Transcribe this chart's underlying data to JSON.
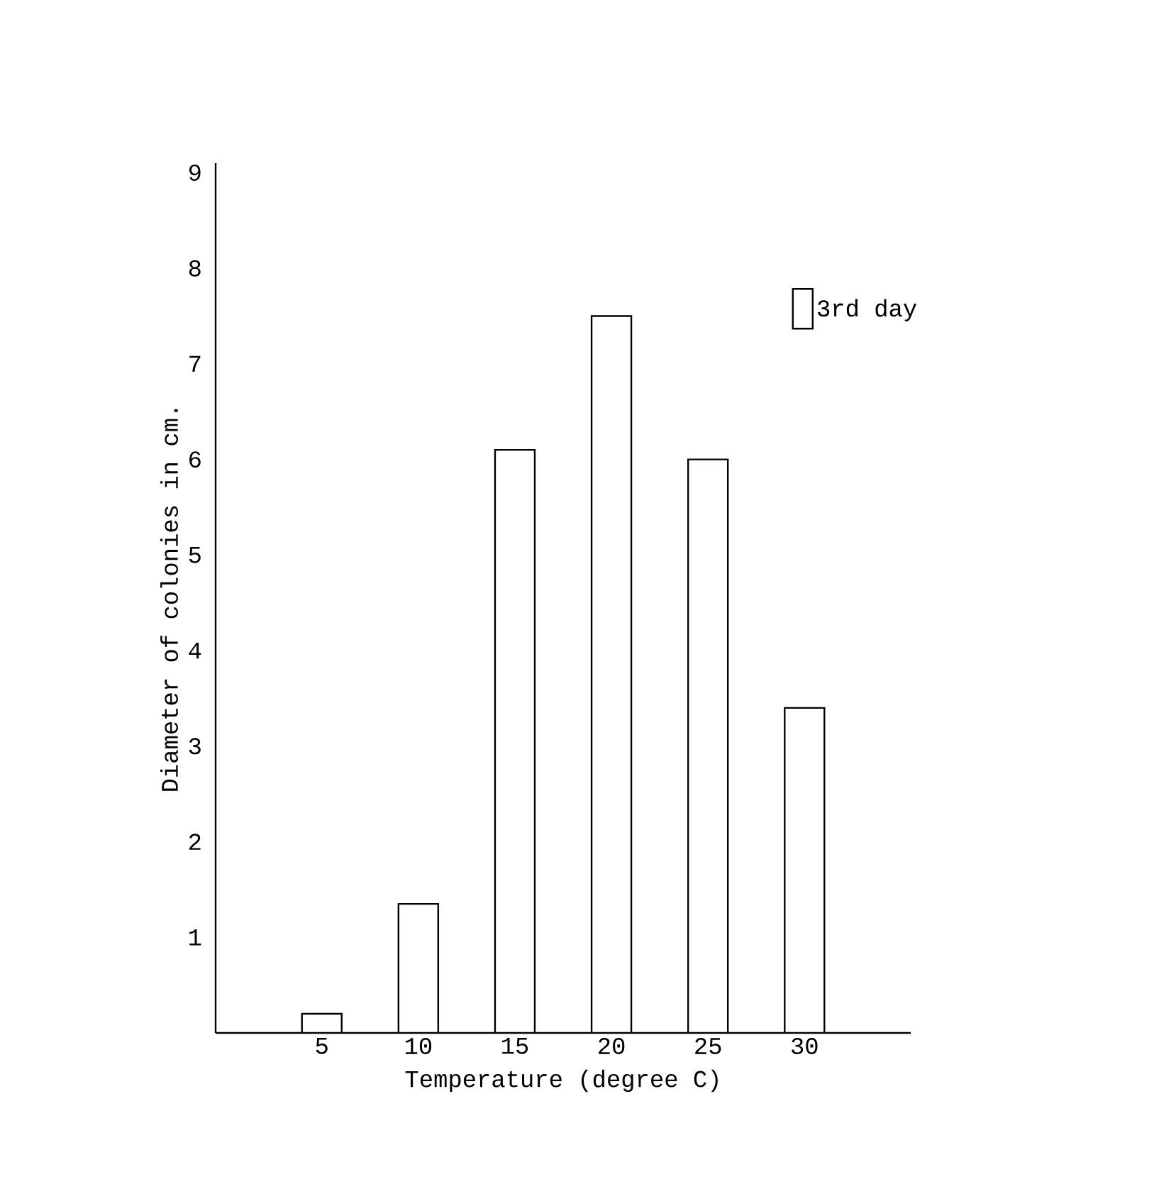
{
  "chart_data": {
    "type": "bar",
    "xlabel": "Temperature (degree C)",
    "ylabel": "Diameter of colonies in cm.",
    "categories": [
      "5",
      "10",
      "15",
      "20",
      "25",
      "30"
    ],
    "series": [
      {
        "name": "3rd day",
        "color": "#ffffff",
        "values": [
          0.2,
          1.35,
          6.1,
          7.5,
          6.0,
          3.4
        ]
      }
    ],
    "ylim": [
      0,
      9.1
    ],
    "yticks": [
      1,
      2,
      3,
      4,
      5,
      6,
      7,
      8,
      9
    ],
    "grid": false,
    "legend": "top right"
  }
}
